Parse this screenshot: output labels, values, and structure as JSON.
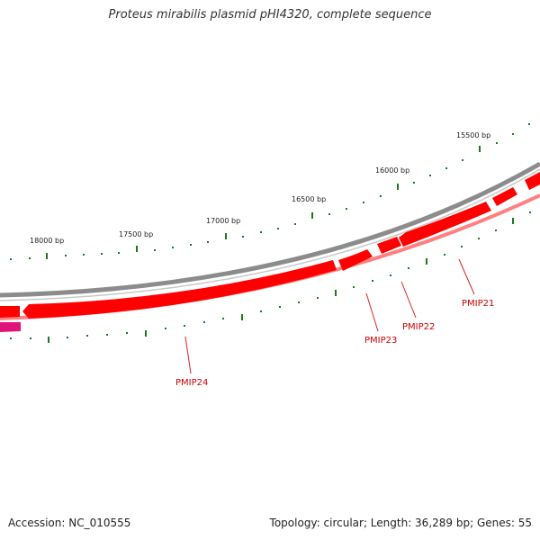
{
  "title": "Proteus mirabilis plasmid pHI4320, complete sequence",
  "footer": {
    "accession": "Accession: NC_010555",
    "summary": "Topology: circular; Length: 36,289 bp; Genes: 55"
  },
  "scale_labels": [
    {
      "bp": 15500,
      "label": "15500 bp"
    },
    {
      "bp": 16000,
      "label": "16000 bp"
    },
    {
      "bp": 16500,
      "label": "16500 bp"
    },
    {
      "bp": 17000,
      "label": "17000 bp"
    },
    {
      "bp": 17500,
      "label": "17500 bp"
    },
    {
      "bp": 18000,
      "label": "18000 bp"
    }
  ],
  "genes": [
    {
      "name": "PMIP21"
    },
    {
      "name": "PMIP22"
    },
    {
      "name": "PMIP23"
    },
    {
      "name": "PMIP24"
    }
  ],
  "colors": {
    "backbone": "#8c8c8c",
    "gene": "#ff0000",
    "gene_shadow": "#ff7777",
    "scale_tick": "#1a7a1a",
    "label": "#cc0000",
    "other_feature": "#e0157a"
  }
}
